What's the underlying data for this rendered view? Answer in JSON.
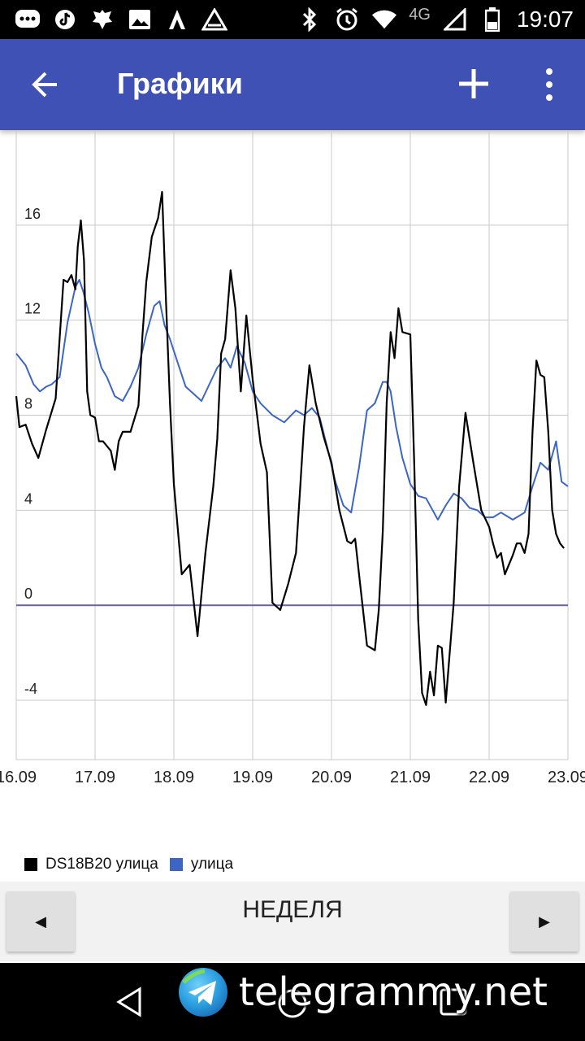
{
  "status_bar": {
    "time": "19:07",
    "network": "4G",
    "icons_left": [
      "message-icon",
      "tiktok-icon",
      "coat-of-arms-icon",
      "image-icon",
      "activity-icon",
      "warning-icon"
    ],
    "icons_right": [
      "bluetooth-icon",
      "alarm-icon",
      "wifi-icon",
      "signal-icon",
      "battery-icon"
    ]
  },
  "app_bar": {
    "title": "Графики",
    "back_icon": "arrow-back-icon",
    "add_icon": "plus-icon",
    "menu_icon": "more-vert-icon",
    "color": "#3f51b5"
  },
  "chart_data": {
    "type": "line",
    "x_tick_labels": [
      "16.09",
      "17.09",
      "18.09",
      "19.09",
      "20.09",
      "21.09",
      "22.09",
      "23.09"
    ],
    "y_tick_labels": [
      "16",
      "12",
      "8",
      "4",
      "0",
      "-4"
    ],
    "ylim": [
      -6.5,
      20
    ],
    "xlim": [
      0,
      7
    ],
    "grid": true,
    "legend_position": "bottom-left",
    "series": [
      {
        "name": "DS18B20 улица",
        "color": "#000000",
        "x": [
          0,
          0.04,
          0.12,
          0.2,
          0.28,
          0.38,
          0.5,
          0.6,
          0.65,
          0.7,
          0.75,
          0.78,
          0.82,
          0.86,
          0.9,
          0.94,
          1.0,
          1.05,
          1.1,
          1.2,
          1.25,
          1.3,
          1.35,
          1.45,
          1.55,
          1.6,
          1.65,
          1.72,
          1.8,
          1.85,
          1.9,
          1.95,
          2.0,
          2.1,
          2.2,
          2.3,
          2.4,
          2.5,
          2.55,
          2.6,
          2.65,
          2.72,
          2.78,
          2.85,
          2.92,
          3.0,
          3.1,
          3.18,
          3.25,
          3.35,
          3.45,
          3.55,
          3.6,
          3.65,
          3.72,
          3.8,
          3.9,
          4.0,
          4.1,
          4.2,
          4.25,
          4.3,
          4.35,
          4.45,
          4.55,
          4.6,
          4.65,
          4.7,
          4.75,
          4.8,
          4.85,
          4.9,
          5.0,
          5.05,
          5.1,
          5.15,
          5.2,
          5.25,
          5.3,
          5.35,
          5.4,
          5.45,
          5.55,
          5.62,
          5.7,
          5.8,
          5.9,
          6.0,
          6.05,
          6.1,
          6.15,
          6.2,
          6.3,
          6.35,
          6.4,
          6.45,
          6.5,
          6.55,
          6.6,
          6.65,
          6.7,
          6.75,
          6.8,
          6.85,
          6.9,
          6.95
        ],
        "y": [
          8.8,
          7.5,
          7.6,
          6.8,
          6.2,
          7.4,
          8.7,
          13.7,
          13.6,
          13.9,
          13.3,
          15.1,
          16.2,
          14.5,
          9.0,
          8.0,
          7.9,
          6.9,
          6.9,
          6.5,
          5.7,
          6.9,
          7.3,
          7.3,
          8.4,
          11.3,
          13.6,
          15.5,
          16.3,
          17.4,
          12.8,
          8.5,
          5.1,
          1.3,
          1.7,
          -1.3,
          2.2,
          5.0,
          7.0,
          10.6,
          11.2,
          14.1,
          12.5,
          9.0,
          12.2,
          9.5,
          6.8,
          5.6,
          0.1,
          -0.2,
          0.9,
          2.2,
          4.8,
          7.5,
          10.1,
          8.5,
          7.1,
          6.0,
          4.0,
          2.7,
          2.6,
          2.8,
          1.3,
          -1.7,
          -1.9,
          -0.2,
          3.1,
          8.5,
          11.5,
          10.4,
          12.5,
          11.5,
          11.4,
          6.0,
          -0.6,
          -3.7,
          -4.2,
          -2.8,
          -3.8,
          -1.7,
          -1.8,
          -4.1,
          0.1,
          5.0,
          8.1,
          6.0,
          4.0,
          3.3,
          2.6,
          2.0,
          2.2,
          1.3,
          2.1,
          2.6,
          2.6,
          2.2,
          3.0,
          7.3,
          10.3,
          9.7,
          9.6,
          7.3,
          4.0,
          3.0,
          2.6,
          2.4
        ]
      },
      {
        "name": "улица",
        "color": "#3b66c4",
        "x": [
          0,
          0.12,
          0.22,
          0.3,
          0.38,
          0.45,
          0.55,
          0.65,
          0.75,
          0.8,
          0.85,
          0.92,
          1.0,
          1.08,
          1.15,
          1.25,
          1.35,
          1.45,
          1.55,
          1.65,
          1.75,
          1.82,
          1.88,
          1.95,
          2.05,
          2.15,
          2.25,
          2.35,
          2.45,
          2.55,
          2.65,
          2.72,
          2.8,
          2.9,
          3.0,
          3.1,
          3.25,
          3.4,
          3.55,
          3.65,
          3.75,
          3.85,
          3.95,
          4.05,
          4.15,
          4.25,
          4.35,
          4.45,
          4.55,
          4.65,
          4.7,
          4.75,
          4.82,
          4.9,
          5.0,
          5.1,
          5.2,
          5.35,
          5.45,
          5.55,
          5.65,
          5.75,
          5.85,
          5.95,
          6.05,
          6.15,
          6.3,
          6.45,
          6.55,
          6.65,
          6.75,
          6.85,
          6.92,
          7.0
        ],
        "y": [
          10.6,
          10.1,
          9.3,
          9.0,
          9.2,
          9.3,
          9.6,
          11.9,
          13.4,
          13.7,
          13.2,
          12.3,
          11.0,
          10.0,
          9.6,
          8.8,
          8.6,
          9.2,
          10.0,
          11.4,
          12.6,
          12.8,
          11.8,
          11.2,
          10.2,
          9.2,
          8.9,
          8.6,
          9.3,
          10.0,
          10.4,
          10.0,
          10.9,
          10.2,
          9.0,
          8.5,
          8.0,
          7.7,
          8.2,
          8.0,
          8.3,
          7.9,
          6.6,
          5.2,
          4.2,
          3.9,
          5.8,
          8.2,
          8.5,
          9.4,
          9.4,
          9.0,
          7.5,
          6.2,
          5.1,
          4.6,
          4.5,
          3.6,
          4.2,
          4.7,
          4.5,
          4.1,
          4.0,
          3.7,
          3.7,
          3.9,
          3.6,
          3.9,
          5.0,
          6.0,
          5.7,
          6.9,
          5.2,
          5.0
        ]
      },
      {
        "name": "",
        "color": "#6a5fb0",
        "x": [
          0,
          7
        ],
        "y": [
          0,
          0
        ]
      }
    ]
  },
  "legend": [
    {
      "label": "DS18B20 улица",
      "color": "#000000"
    },
    {
      "label": "улица",
      "color": "#3b66c4"
    }
  ],
  "controls": {
    "prev_label": "◀",
    "period_label": "НЕДЕЛЯ",
    "next_label": "▶"
  },
  "nav_bar": {
    "icons": [
      "nav-back-icon",
      "nav-home-icon",
      "nav-recents-icon"
    ]
  },
  "watermark": {
    "text": "telegrammy.net",
    "logo": "telegram-logo-icon"
  }
}
